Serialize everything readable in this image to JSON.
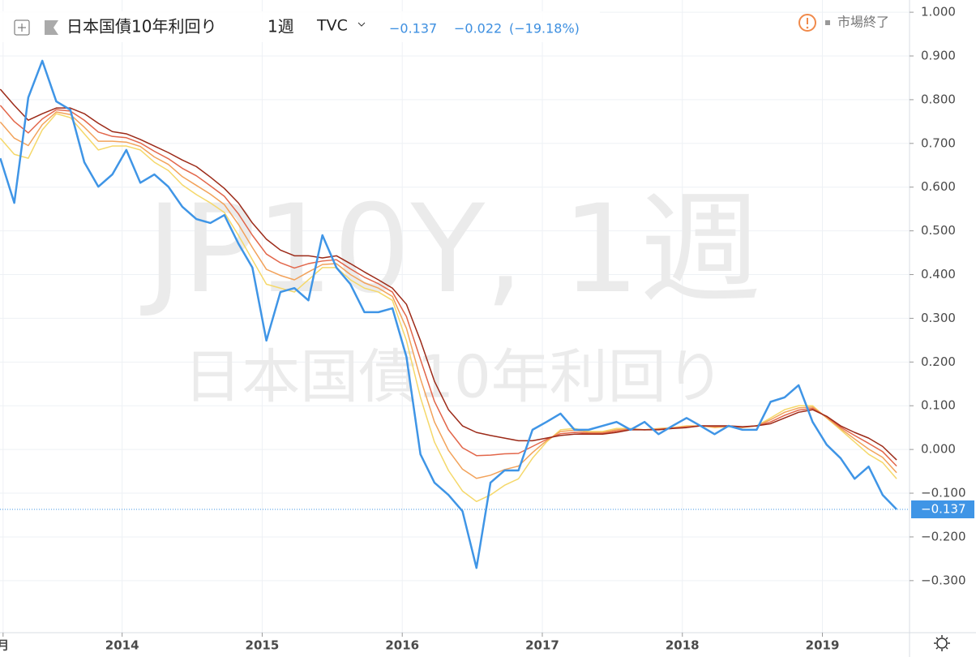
{
  "chart_data": {
    "type": "line",
    "title": "日本国債10年利回り",
    "interval": "1週",
    "source": "TVC",
    "header_last": "−0.137",
    "header_change": "−0.022",
    "header_change_pct": "(−19.18%)",
    "status": "市場終了",
    "watermark_symbol": "JP10Y, 1週",
    "watermark_name": "日本国債10年利回り",
    "xlim": [
      2013.128,
      2019.622
    ],
    "ylim": [
      -0.419,
      1.028
    ],
    "xticks": [
      {
        "value": 2013.15,
        "label": "月"
      },
      2014,
      2015,
      2016,
      2017,
      2018,
      2019
    ],
    "yticks": [
      {
        "value": -0.3,
        "label": "−0.300"
      },
      {
        "value": -0.2,
        "label": "−0.200"
      },
      {
        "value": -0.1,
        "label": "−0.100"
      },
      {
        "value": 0,
        "label": "0.000"
      },
      {
        "value": 0.1,
        "label": "0.100"
      },
      {
        "value": 0.2,
        "label": "0.200"
      },
      {
        "value": 0.3,
        "label": "0.300"
      },
      {
        "value": 0.4,
        "label": "0.400"
      },
      {
        "value": 0.5,
        "label": "0.500"
      },
      {
        "value": 0.6,
        "label": "0.600"
      },
      {
        "value": 0.7,
        "label": "0.700"
      },
      {
        "value": 0.8,
        "label": "0.800"
      },
      {
        "value": 0.9,
        "label": "0.900"
      },
      {
        "value": 1.0,
        "label": "1.000"
      }
    ],
    "grid": true,
    "last_price": {
      "value": -0.137,
      "label": "−0.137"
    },
    "x": [
      2013.13,
      2013.23,
      2013.33,
      2013.43,
      2013.53,
      2013.63,
      2013.73,
      2013.83,
      2013.93,
      2014.03,
      2014.13,
      2014.23,
      2014.33,
      2014.43,
      2014.53,
      2014.63,
      2014.73,
      2014.83,
      2014.93,
      2015.03,
      2015.13,
      2015.23,
      2015.33,
      2015.43,
      2015.53,
      2015.63,
      2015.73,
      2015.83,
      2015.93,
      2016.03,
      2016.13,
      2016.23,
      2016.33,
      2016.43,
      2016.53,
      2016.63,
      2016.73,
      2016.83,
      2016.93,
      2017.03,
      2017.13,
      2017.23,
      2017.33,
      2017.43,
      2017.53,
      2017.63,
      2017.73,
      2017.83,
      2017.93,
      2018.03,
      2018.13,
      2018.23,
      2018.33,
      2018.43,
      2018.53,
      2018.63,
      2018.73,
      2018.83,
      2018.93,
      2019.03,
      2019.13,
      2019.23,
      2019.33,
      2019.43,
      2019.53
    ],
    "series": [
      {
        "color": "#f5d86a",
        "values": [
          0.712,
          0.675,
          0.666,
          0.731,
          0.768,
          0.759,
          0.722,
          0.685,
          0.694,
          0.694,
          0.685,
          0.657,
          0.638,
          0.605,
          0.583,
          0.564,
          0.542,
          0.49,
          0.434,
          0.378,
          0.369,
          0.36,
          0.388,
          0.416,
          0.416,
          0.388,
          0.369,
          0.36,
          0.341,
          0.249,
          0.119,
          0.017,
          -0.048,
          -0.095,
          -0.119,
          -0.104,
          -0.082,
          -0.067,
          -0.02,
          0.017,
          0.045,
          0.048,
          0.041,
          0.041,
          0.048,
          0.048,
          0.045,
          0.048,
          0.05,
          0.054,
          0.054,
          0.05,
          0.052,
          0.05,
          0.054,
          0.072,
          0.091,
          0.1,
          0.1,
          0.072,
          0.045,
          0.017,
          -0.011,
          -0.03,
          -0.067
        ]
      },
      {
        "color": "#f2a25a",
        "values": [
          0.749,
          0.712,
          0.695,
          0.743,
          0.772,
          0.766,
          0.737,
          0.705,
          0.705,
          0.703,
          0.693,
          0.669,
          0.652,
          0.624,
          0.604,
          0.584,
          0.56,
          0.515,
          0.462,
          0.412,
          0.398,
          0.388,
          0.406,
          0.423,
          0.425,
          0.4,
          0.381,
          0.369,
          0.35,
          0.277,
          0.162,
          0.063,
          -0.002,
          -0.045,
          -0.066,
          -0.059,
          -0.046,
          -0.038,
          -0.007,
          0.02,
          0.041,
          0.044,
          0.039,
          0.039,
          0.045,
          0.047,
          0.045,
          0.047,
          0.049,
          0.053,
          0.054,
          0.051,
          0.053,
          0.051,
          0.054,
          0.068,
          0.085,
          0.095,
          0.097,
          0.073,
          0.048,
          0.024,
          0.001,
          -0.018,
          -0.053
        ]
      },
      {
        "color": "#e2664a",
        "values": [
          0.787,
          0.75,
          0.724,
          0.756,
          0.777,
          0.774,
          0.753,
          0.726,
          0.716,
          0.713,
          0.701,
          0.682,
          0.665,
          0.643,
          0.626,
          0.603,
          0.579,
          0.539,
          0.49,
          0.447,
          0.427,
          0.415,
          0.425,
          0.431,
          0.434,
          0.413,
          0.394,
          0.379,
          0.36,
          0.304,
          0.206,
          0.11,
          0.045,
          0.004,
          -0.014,
          -0.013,
          -0.01,
          -0.009,
          0.007,
          0.023,
          0.036,
          0.039,
          0.037,
          0.037,
          0.042,
          0.046,
          0.045,
          0.046,
          0.049,
          0.051,
          0.054,
          0.053,
          0.053,
          0.051,
          0.054,
          0.063,
          0.078,
          0.09,
          0.094,
          0.075,
          0.051,
          0.032,
          0.014,
          -0.005,
          -0.038
        ]
      },
      {
        "color": "#9c2a18",
        "values": [
          0.824,
          0.787,
          0.753,
          0.768,
          0.781,
          0.781,
          0.768,
          0.746,
          0.727,
          0.722,
          0.709,
          0.694,
          0.679,
          0.662,
          0.647,
          0.623,
          0.597,
          0.564,
          0.518,
          0.481,
          0.456,
          0.443,
          0.443,
          0.438,
          0.443,
          0.425,
          0.406,
          0.388,
          0.369,
          0.332,
          0.249,
          0.156,
          0.091,
          0.054,
          0.039,
          0.032,
          0.026,
          0.02,
          0.02,
          0.026,
          0.032,
          0.035,
          0.035,
          0.035,
          0.039,
          0.045,
          0.045,
          0.045,
          0.048,
          0.05,
          0.054,
          0.054,
          0.054,
          0.052,
          0.054,
          0.059,
          0.072,
          0.085,
          0.091,
          0.076,
          0.054,
          0.039,
          0.026,
          0.007,
          -0.024
        ]
      },
      {
        "color": "#3f95e6",
        "values": [
          0.666,
          0.564,
          0.805,
          0.889,
          0.796,
          0.777,
          0.657,
          0.601,
          0.629,
          0.685,
          0.61,
          0.629,
          0.601,
          0.555,
          0.527,
          0.518,
          0.536,
          0.471,
          0.416,
          0.249,
          0.36,
          0.369,
          0.341,
          0.49,
          0.416,
          0.378,
          0.314,
          0.314,
          0.323,
          0.212,
          -0.011,
          -0.076,
          -0.104,
          -0.141,
          -0.271,
          -0.076,
          -0.048,
          -0.048,
          0.045,
          0.063,
          0.082,
          0.045,
          0.045,
          0.054,
          0.063,
          0.045,
          0.063,
          0.035,
          0.054,
          0.072,
          0.054,
          0.035,
          0.054,
          0.045,
          0.045,
          0.109,
          0.119,
          0.147,
          0.063,
          0.011,
          -0.02,
          -0.067,
          -0.039,
          -0.104,
          -0.137
        ]
      }
    ]
  }
}
